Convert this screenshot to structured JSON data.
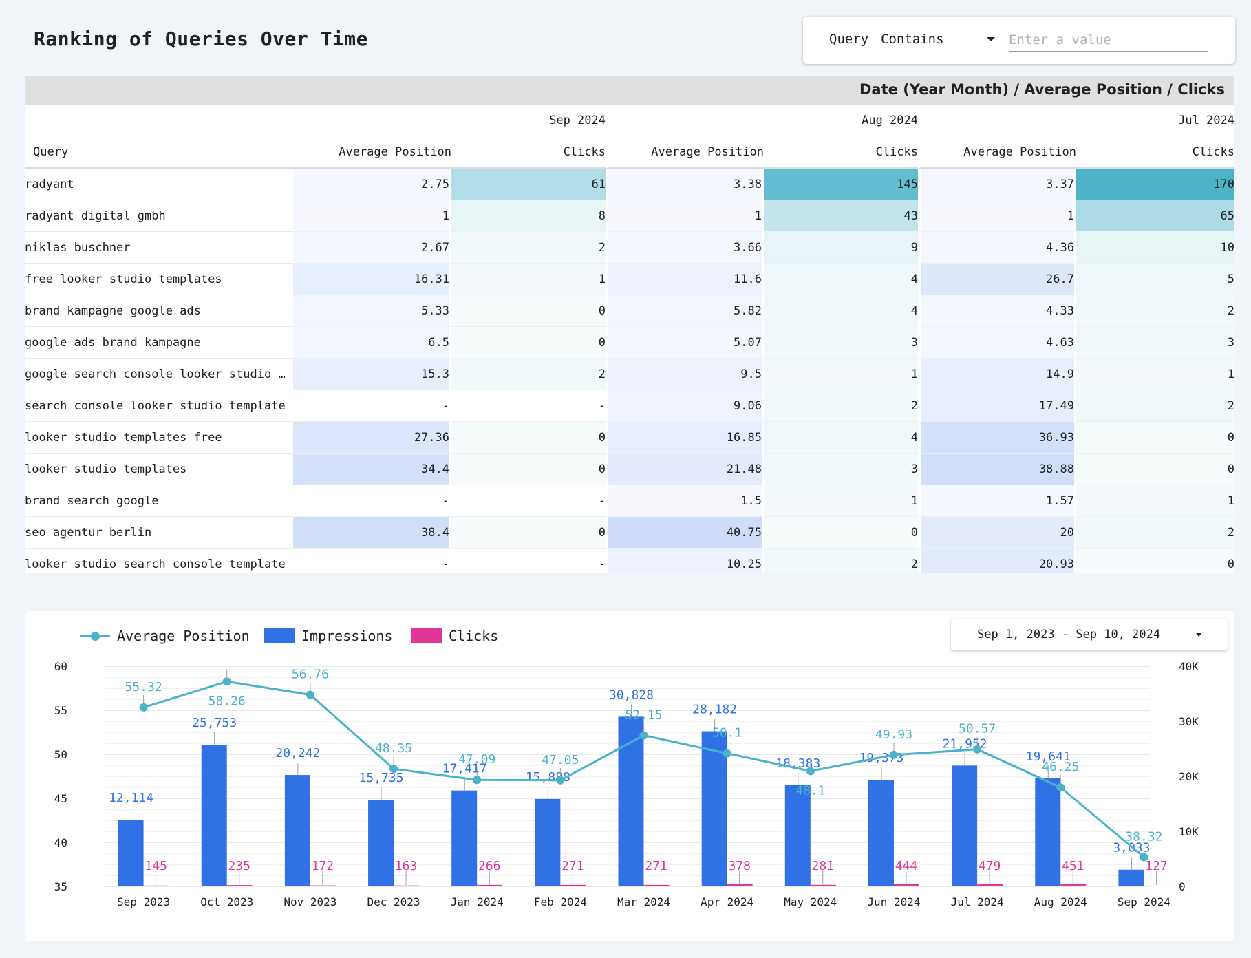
{
  "title": "Ranking of Queries Over Time",
  "filter": {
    "label": "Query",
    "operator": "Contains",
    "placeholder": "Enter a value"
  },
  "pivot": {
    "header": "Date (Year Month) / Average Position / Clicks",
    "row_header": "Query",
    "months": [
      "Sep 2024",
      "Aug 2024",
      "Jul 2024"
    ],
    "metrics": [
      "Average Position",
      "Clicks"
    ],
    "rows": [
      {
        "query": "radyant",
        "values": [
          "2.75",
          "61",
          "3.38",
          "145",
          "3.37",
          "170"
        ]
      },
      {
        "query": "radyant digital gmbh",
        "values": [
          "1",
          "8",
          "1",
          "43",
          "1",
          "65"
        ]
      },
      {
        "query": "niklas buschner",
        "values": [
          "2.67",
          "2",
          "3.66",
          "9",
          "4.36",
          "10"
        ]
      },
      {
        "query": "free looker studio templates",
        "values": [
          "16.31",
          "1",
          "11.6",
          "4",
          "26.7",
          "5"
        ]
      },
      {
        "query": "brand kampagne google ads",
        "values": [
          "5.33",
          "0",
          "5.82",
          "4",
          "4.33",
          "2"
        ]
      },
      {
        "query": "google ads brand kampagne",
        "values": [
          "6.5",
          "0",
          "5.07",
          "3",
          "4.63",
          "3"
        ]
      },
      {
        "query": "google search console looker studio …",
        "values": [
          "15.3",
          "2",
          "9.5",
          "1",
          "14.9",
          "1"
        ]
      },
      {
        "query": "search console looker studio template",
        "values": [
          "-",
          "-",
          "9.06",
          "2",
          "17.49",
          "2"
        ]
      },
      {
        "query": "looker studio templates free",
        "values": [
          "27.36",
          "0",
          "16.85",
          "4",
          "36.93",
          "0"
        ]
      },
      {
        "query": "looker studio templates",
        "values": [
          "34.4",
          "0",
          "21.48",
          "3",
          "38.88",
          "0"
        ]
      },
      {
        "query": "brand search google",
        "values": [
          "-",
          "-",
          "1.5",
          "1",
          "1.57",
          "1"
        ]
      },
      {
        "query": "seo agentur berlin",
        "values": [
          "38.4",
          "0",
          "40.75",
          "0",
          "20",
          "2"
        ]
      },
      {
        "query": "looker studio search console template",
        "values": [
          "-",
          "-",
          "10.25",
          "2",
          "20.93",
          "0"
        ]
      }
    ],
    "colors": {
      "position_scale": [
        "#f7f9fe",
        "#cfddf8"
      ],
      "clicks_scale": [
        "#f6fbfc",
        "#4eb3c8"
      ]
    }
  },
  "date_range": "Sep 1, 2023 - Sep 10, 2024",
  "chart_data": {
    "type": "bar",
    "categories": [
      "Sep 2023",
      "Oct 2023",
      "Nov 2023",
      "Dec 2023",
      "Jan 2024",
      "Feb 2024",
      "Mar 2024",
      "Apr 2024",
      "May 2024",
      "Jun 2024",
      "Jul 2024",
      "Aug 2024",
      "Sep 2024"
    ],
    "series": [
      {
        "name": "Average Position",
        "kind": "line",
        "axis": "left",
        "color": "#4bb3c9",
        "values": [
          55.32,
          58.26,
          56.76,
          48.35,
          47.09,
          47.05,
          52.15,
          50.1,
          48.1,
          49.93,
          50.57,
          46.25,
          38.32
        ],
        "labels": [
          "55.32",
          "58.26",
          "56.76",
          "48.35",
          "47.09",
          "47.05",
          "52.15",
          "50.1",
          "48.1",
          "49.93",
          "50.57",
          "46.25",
          "38.32"
        ]
      },
      {
        "name": "Impressions",
        "kind": "bar",
        "axis": "right",
        "color": "#3072e6",
        "values": [
          12114,
          25753,
          20242,
          15735,
          17417,
          15888,
          30828,
          28182,
          18383,
          19373,
          21952,
          19641,
          3033
        ],
        "labels": [
          "12,114",
          "25,753",
          "20,242",
          "15,735",
          "17,417",
          "15,888",
          "30,828",
          "28,182",
          "18,383",
          "19,373",
          "21,952",
          "19,641",
          "3,033"
        ]
      },
      {
        "name": "Clicks",
        "kind": "bar",
        "axis": "right",
        "color": "#e0369a",
        "values": [
          145,
          235,
          172,
          163,
          266,
          271,
          271,
          378,
          281,
          444,
          479,
          451,
          127
        ],
        "labels": [
          "145",
          "235",
          "172",
          "163",
          "266",
          "271",
          "271",
          "378",
          "281",
          "444",
          "479",
          "451",
          "127"
        ]
      }
    ],
    "y_left": {
      "min": 35,
      "max": 60,
      "ticks": [
        "35",
        "40",
        "45",
        "50",
        "55",
        "60"
      ],
      "tick_values": [
        35,
        40,
        45,
        50,
        55,
        60
      ]
    },
    "y_right": {
      "min": 0,
      "max": 40000,
      "ticks": [
        "0",
        "10K",
        "20K",
        "30K",
        "40K"
      ],
      "tick_values": [
        0,
        10000,
        20000,
        30000,
        40000
      ]
    },
    "grid": true,
    "legend": "top-left"
  }
}
